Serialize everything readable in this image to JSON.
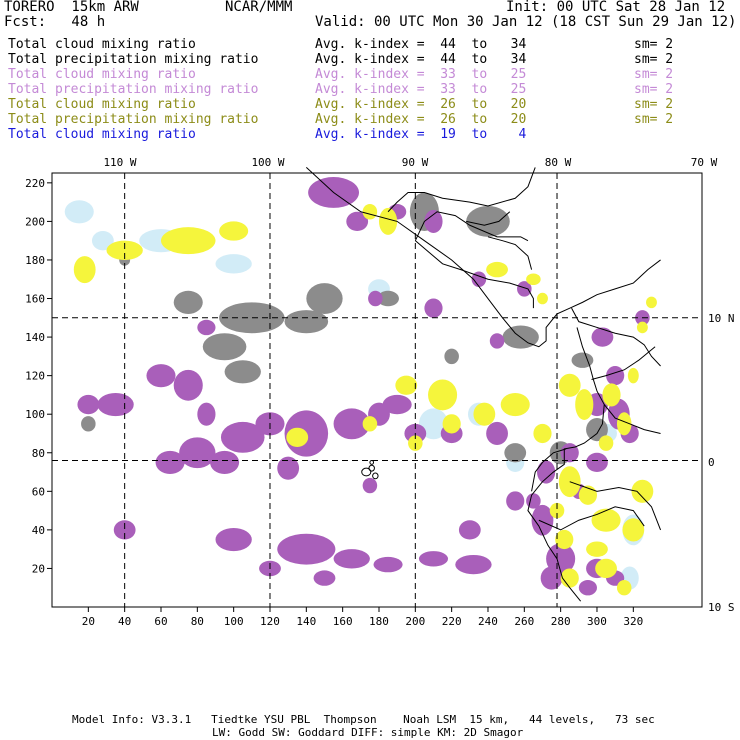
{
  "header": {
    "model": "TORERO  15km ARW",
    "org": "NCAR/MMM",
    "init": "Init: 00 UTC Sat 28 Jan 12",
    "fcst": "Fcst:   48 h",
    "valid": "Valid: 00 UTC Mon 30 Jan 12 (18 CST Sun 29 Jan 12)"
  },
  "legend": [
    {
      "name": "Total cloud mixing ratio",
      "kindex": "Avg. k-index =  44  to   34",
      "sm": "sm= 2",
      "color": "#000000"
    },
    {
      "name": "Total precipitation mixing ratio",
      "kindex": "Avg. k-index =  44  to   34",
      "sm": "sm= 2",
      "color": "#000000"
    },
    {
      "name": "Total cloud mixing ratio",
      "kindex": "Avg. k-index =  33  to   25",
      "sm": "sm= 2",
      "color": "#c48ad6"
    },
    {
      "name": "Total precipitation mixing ratio",
      "kindex": "Avg. k-index =  33  to   25",
      "sm": "sm= 2",
      "color": "#c48ad6"
    },
    {
      "name": "Total cloud mixing ratio",
      "kindex": "Avg. k-index =  26  to   20",
      "sm": "sm= 2",
      "color": "#8c8c18"
    },
    {
      "name": "Total precipitation mixing ratio",
      "kindex": "Avg. k-index =  26  to   20",
      "sm": "sm= 2",
      "color": "#8c8c18"
    },
    {
      "name": "Total cloud mixing ratio",
      "kindex": "Avg. k-index =  19  to    4",
      "sm": "",
      "color": "#1a1adc"
    }
  ],
  "map": {
    "lon_labels": [
      "110 W",
      "100 W",
      "90 W",
      "80 W",
      "70 W"
    ],
    "lat_labels": [
      "10 N",
      "0",
      "10 S"
    ],
    "x_ticks": [
      "20",
      "40",
      "60",
      "80",
      "100",
      "120",
      "140",
      "160",
      "180",
      "200",
      "220",
      "240",
      "260",
      "280",
      "300",
      "320"
    ],
    "y_ticks": [
      "20",
      "40",
      "60",
      "80",
      "100",
      "120",
      "140",
      "160",
      "180",
      "200",
      "220"
    ],
    "colors": {
      "gray": "#8c8c8c",
      "purple": "#a95fba",
      "yellow": "#f5f53c",
      "lightblue": "#d2ecf7",
      "coast": "#000000",
      "grid": "#000000"
    }
  },
  "footer": {
    "line1": "Model Info: V3.3.1   Tiedtke YSU PBL  Thompson    Noah LSM  15 km,   44 levels,   73 sec",
    "line2": "LW: Godd SW: Goddard DIFF: simple KM: 2D Smagor"
  }
}
